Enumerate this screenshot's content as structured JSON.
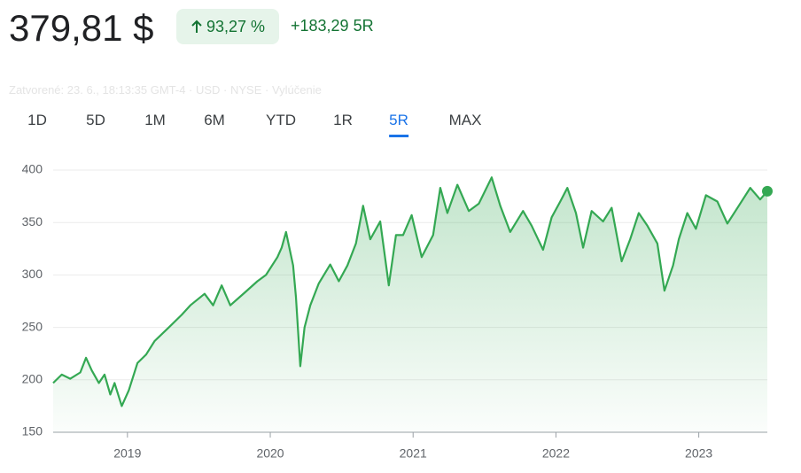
{
  "header": {
    "price": "379,81 $",
    "change_percent": "93,27 %",
    "change_abs": "+183,29",
    "period": "5R",
    "status": "Zatvorené: 23. 6., 18:13:35 GMT-4 · USD · NYSE · Vylúčenie"
  },
  "tabs": {
    "items": [
      "1D",
      "5D",
      "1M",
      "6M",
      "YTD",
      "1R",
      "5R",
      "MAX"
    ],
    "active": 6
  },
  "chart_data": {
    "type": "line",
    "color": "#34a853",
    "grid": true,
    "x": [
      2018.48,
      2018.54,
      2018.6,
      2018.67,
      2018.71,
      2018.75,
      2018.8,
      2018.84,
      2018.88,
      2018.91,
      2018.96,
      2019.01,
      2019.07,
      2019.13,
      2019.19,
      2019.29,
      2019.38,
      2019.44,
      2019.54,
      2019.6,
      2019.66,
      2019.72,
      2019.82,
      2019.91,
      2019.97,
      2020.05,
      2020.08,
      2020.11,
      2020.16,
      2020.18,
      2020.21,
      2020.24,
      2020.28,
      2020.34,
      2020.42,
      2020.48,
      2020.54,
      2020.6,
      2020.65,
      2020.7,
      2020.77,
      2020.83,
      2020.88,
      2020.93,
      2020.99,
      2021.06,
      2021.14,
      2021.19,
      2021.24,
      2021.31,
      2021.39,
      2021.46,
      2021.55,
      2021.61,
      2021.68,
      2021.77,
      2021.83,
      2021.91,
      2021.97,
      2022.03,
      2022.08,
      2022.14,
      2022.19,
      2022.25,
      2022.33,
      2022.39,
      2022.46,
      2022.52,
      2022.58,
      2022.64,
      2022.71,
      2022.76,
      2022.82,
      2022.86,
      2022.92,
      2022.98,
      2023.05,
      2023.13,
      2023.2,
      2023.28,
      2023.36,
      2023.43,
      2023.48
    ],
    "values": [
      197,
      205,
      201,
      207,
      221,
      209,
      197,
      205,
      186,
      197,
      175,
      190,
      216,
      224,
      237,
      250,
      262,
      271,
      282,
      271,
      290,
      271,
      283,
      294,
      300,
      317,
      326,
      341,
      309,
      279,
      213,
      250,
      271,
      292,
      310,
      294,
      309,
      330,
      366,
      334,
      351,
      290,
      338,
      338,
      357,
      317,
      338,
      383,
      359,
      386,
      361,
      368,
      393,
      366,
      341,
      361,
      347,
      324,
      355,
      370,
      383,
      359,
      326,
      361,
      351,
      364,
      313,
      334,
      359,
      347,
      330,
      285,
      309,
      334,
      359,
      344,
      376,
      370,
      349,
      366,
      383,
      372,
      379.81
    ],
    "xlim": [
      2018.48,
      2023.48
    ],
    "xticks": [
      2019,
      2020,
      2021,
      2022,
      2023
    ],
    "ylim": [
      150,
      400
    ],
    "yticks": [
      150,
      200,
      250,
      300,
      350,
      400
    ]
  }
}
